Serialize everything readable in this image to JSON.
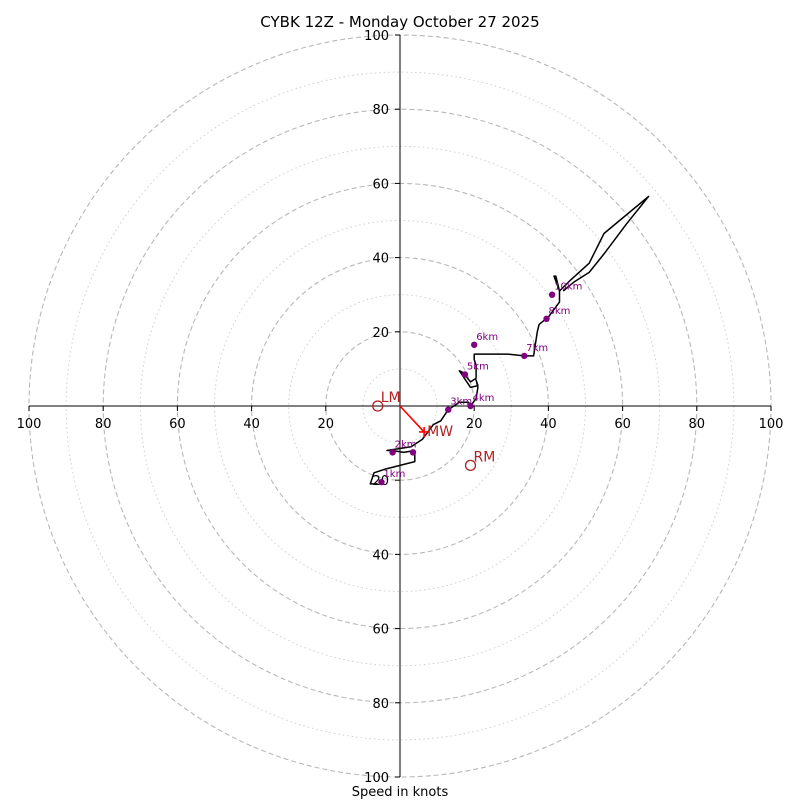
{
  "chart_data": {
    "type": "hodograph",
    "title": "CYBK 12Z - Monday October 27 2025",
    "xlabel": "Speed in knots",
    "ylabel": "",
    "xlim": [
      -100,
      100
    ],
    "ylim": [
      -100,
      100
    ],
    "grid": "polar rings",
    "rings": {
      "dashed": [
        20,
        40,
        60,
        80,
        100
      ],
      "dotted": [
        10,
        30,
        50,
        70,
        90
      ]
    },
    "x_ticks": [
      {
        "value": -100,
        "label": "100"
      },
      {
        "value": -80,
        "label": "80"
      },
      {
        "value": -60,
        "label": "60"
      },
      {
        "value": -40,
        "label": "40"
      },
      {
        "value": -20,
        "label": "20"
      },
      {
        "value": 20,
        "label": "20"
      },
      {
        "value": 40,
        "label": "40"
      },
      {
        "value": 60,
        "label": "60"
      },
      {
        "value": 80,
        "label": "80"
      },
      {
        "value": 100,
        "label": "100"
      }
    ],
    "y_ticks": [
      {
        "value": 100,
        "label": "100"
      },
      {
        "value": 80,
        "label": "80"
      },
      {
        "value": 60,
        "label": "60"
      },
      {
        "value": 40,
        "label": "40"
      },
      {
        "value": 20,
        "label": "20"
      },
      {
        "value": -20,
        "label": "20"
      },
      {
        "value": -40,
        "label": "40"
      },
      {
        "value": -60,
        "label": "60"
      },
      {
        "value": -80,
        "label": "80"
      },
      {
        "value": -100,
        "label": "100"
      }
    ],
    "profile": {
      "name": "wind profile",
      "color": "#000000",
      "points": [
        [
          -6,
          -21
        ],
        [
          -8,
          -21
        ],
        [
          -7,
          -18
        ],
        [
          -4,
          -17
        ],
        [
          0,
          -16
        ],
        [
          4,
          -15
        ],
        [
          4,
          -12
        ],
        [
          1,
          -12.5
        ],
        [
          -2,
          -12
        ],
        [
          -3.5,
          -12
        ],
        [
          3,
          -11
        ],
        [
          6,
          -9
        ],
        [
          9,
          -5
        ],
        [
          11,
          -4
        ],
        [
          13,
          -1
        ],
        [
          16,
          1
        ],
        [
          18.5,
          1
        ],
        [
          19,
          0
        ],
        [
          20.5,
          2
        ],
        [
          21,
          5
        ],
        [
          20.5,
          7
        ],
        [
          21,
          5.5
        ],
        [
          19,
          5
        ],
        [
          16,
          9.5
        ],
        [
          17,
          9
        ],
        [
          19,
          6.5
        ],
        [
          20.5,
          7.5
        ],
        [
          20.5,
          9
        ],
        [
          20.5,
          11
        ],
        [
          20,
          12.5
        ],
        [
          20,
          14
        ],
        [
          24,
          14
        ],
        [
          29,
          14
        ],
        [
          33.5,
          13.5
        ],
        [
          36,
          13.5
        ],
        [
          37,
          20
        ],
        [
          37.5,
          22
        ],
        [
          40,
          24
        ],
        [
          43,
          28
        ],
        [
          43,
          31
        ],
        [
          41.5,
          35
        ],
        [
          42,
          35
        ],
        [
          43,
          31
        ],
        [
          46,
          34
        ],
        [
          51,
          38.5
        ],
        [
          55,
          46.5
        ],
        [
          67,
          56.5
        ],
        [
          61,
          49
        ],
        [
          55,
          41
        ],
        [
          51,
          36
        ],
        [
          47,
          33.5
        ],
        [
          44,
          31
        ]
      ]
    },
    "height_markers": [
      {
        "label": "1km",
        "x": -5,
        "y": -20.5
      },
      {
        "label": "2km",
        "x": -2,
        "y": -12.5
      },
      {
        "label": "",
        "x": 3.5,
        "y": -12.5
      },
      {
        "label": "3km",
        "x": 13,
        "y": -1
      },
      {
        "label": "4km",
        "x": 19,
        "y": 0
      },
      {
        "label": "5km",
        "x": 17.5,
        "y": 8.5
      },
      {
        "label": "6km",
        "x": 20,
        "y": 16.5
      },
      {
        "label": "7km",
        "x": 33.5,
        "y": 13.5
      },
      {
        "label": "8km",
        "x": 39.5,
        "y": 23.5
      },
      {
        "label": "10km",
        "x": 41,
        "y": 30
      }
    ],
    "marker_color": "#800080",
    "storm_motion": {
      "color": "#b22222",
      "vector_color": "#ff0000",
      "points": [
        {
          "label": "LM",
          "x": -6,
          "y": 0
        },
        {
          "label": "RM",
          "x": 19,
          "y": -16
        },
        {
          "label": "MW",
          "x": 6.5,
          "y": -7
        }
      ],
      "mean_wind_vector": {
        "from": [
          0,
          0
        ],
        "to": [
          6.5,
          -7
        ]
      }
    }
  }
}
